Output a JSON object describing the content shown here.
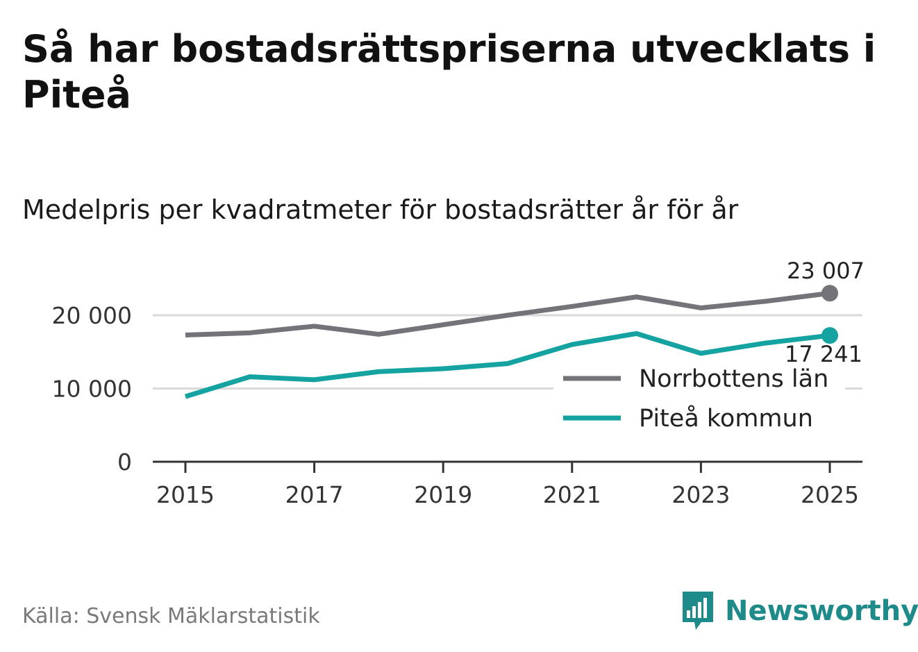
{
  "title": "Så har bostadsrättspriserna utvecklats i Piteå",
  "subtitle": "Medelpris per kvadratmeter för bostadsrätter år för år",
  "source": "Källa: Svensk Mäklarstatistik",
  "brand": {
    "name": "Newsworthy",
    "icon": "newsworthy-logo-icon",
    "color": "#1e8a8a"
  },
  "colors": {
    "norrbotten": "#747379",
    "pitea": "#14a3a0",
    "grid": "#d9d9d9",
    "axis": "#333333"
  },
  "chart_data": {
    "type": "line",
    "title": "Medelpris per kvadratmeter för bostadsrätter år för år",
    "x": [
      2015,
      2016,
      2017,
      2018,
      2019,
      2020,
      2021,
      2022,
      2023,
      2024,
      2025
    ],
    "xticks": [
      "2015",
      "2017",
      "2019",
      "2021",
      "2023",
      "2025"
    ],
    "yticks": [
      0,
      10000,
      20000
    ],
    "ytick_labels": [
      "0",
      "10 000",
      "20 000"
    ],
    "ylim": [
      0,
      24000
    ],
    "grid": true,
    "legend_position": "bottom-right",
    "series": [
      {
        "name": "Norrbottens län",
        "values": [
          17300,
          17600,
          18500,
          17400,
          18700,
          20000,
          21200,
          22500,
          21000,
          21900,
          23007
        ],
        "end_label": "23 007"
      },
      {
        "name": "Piteå kommun",
        "values": [
          8900,
          11600,
          11200,
          12300,
          12700,
          13400,
          16000,
          17500,
          14800,
          16200,
          17241
        ],
        "end_label": "17 241"
      }
    ]
  }
}
